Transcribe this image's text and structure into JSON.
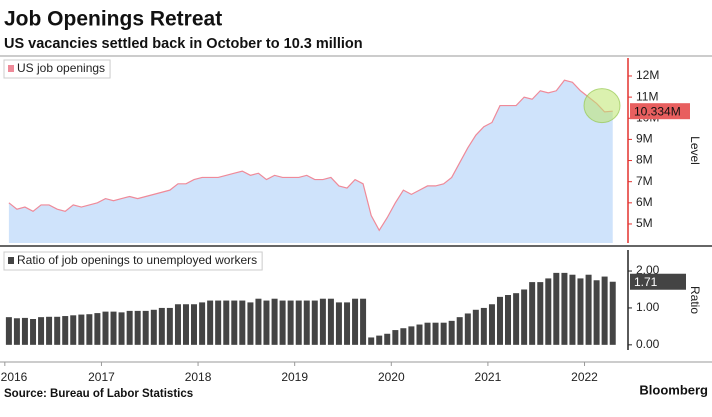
{
  "title": "Job Openings Retreat",
  "subtitle": "US vacancies settled back in October to 10.3 million",
  "source": "Source: Bureau of Labor Statistics",
  "brand": "Bloomberg",
  "chart_data": [
    {
      "type": "area",
      "axis_label": "Level",
      "x": [
        2016.542,
        2016.625,
        2016.708,
        2016.792,
        2016.875,
        2016.958,
        2017.042,
        2017.125,
        2017.208,
        2017.292,
        2017.375,
        2017.458,
        2017.542,
        2017.625,
        2017.708,
        2017.792,
        2017.875,
        2017.958,
        2018.042,
        2018.125,
        2018.208,
        2018.292,
        2018.375,
        2018.458,
        2018.542,
        2018.625,
        2018.708,
        2018.792,
        2018.875,
        2018.958,
        2019.042,
        2019.125,
        2019.208,
        2019.292,
        2019.375,
        2019.458,
        2019.542,
        2019.625,
        2019.708,
        2019.792,
        2019.875,
        2019.958,
        2020.042,
        2020.125,
        2020.208,
        2020.292,
        2020.375,
        2020.458,
        2020.542,
        2020.625,
        2020.708,
        2020.792,
        2020.875,
        2020.958,
        2021.042,
        2021.125,
        2021.208,
        2021.292,
        2021.375,
        2021.458,
        2021.542,
        2021.625,
        2021.708,
        2021.792,
        2021.875,
        2021.958,
        2022.042,
        2022.125,
        2022.208,
        2022.292,
        2022.375,
        2022.458,
        2022.542,
        2022.625,
        2022.708,
        2022.792
      ],
      "xlim": [
        2016.45,
        2022.95
      ],
      "xticks": [
        {
          "value": 2016.5,
          "label": "2016"
        },
        {
          "value": 2017.5,
          "label": "2017"
        },
        {
          "value": 2018.5,
          "label": "2018"
        },
        {
          "value": 2019.5,
          "label": "2019"
        },
        {
          "value": 2020.5,
          "label": "2020"
        },
        {
          "value": 2021.5,
          "label": "2021"
        },
        {
          "value": 2022.5,
          "label": "2022"
        }
      ],
      "series": [
        {
          "name": "US job openings",
          "color": "#ef8a99",
          "fill": "#cfe3fb",
          "values": [
            6.0,
            5.7,
            5.8,
            5.6,
            5.9,
            5.9,
            5.7,
            5.6,
            5.9,
            5.8,
            5.9,
            6.0,
            6.2,
            6.1,
            6.2,
            6.3,
            6.2,
            6.3,
            6.4,
            6.5,
            6.6,
            6.9,
            6.9,
            7.1,
            7.2,
            7.2,
            7.2,
            7.3,
            7.4,
            7.5,
            7.3,
            7.4,
            7.1,
            7.3,
            7.2,
            7.2,
            7.2,
            7.3,
            7.1,
            7.1,
            7.2,
            6.8,
            6.7,
            7.1,
            6.9,
            5.4,
            4.7,
            5.3,
            6.0,
            6.6,
            6.4,
            6.6,
            6.8,
            6.8,
            6.9,
            7.2,
            7.9,
            8.6,
            9.2,
            9.6,
            9.8,
            10.6,
            10.6,
            10.6,
            11.0,
            10.9,
            11.3,
            11.2,
            11.3,
            11.8,
            11.7,
            11.3,
            11.0,
            10.7,
            10.3,
            10.334
          ],
          "last_label": {
            "value": 10.334,
            "label": "10.334M"
          }
        }
      ],
      "ylim": [
        4.1,
        12.85
      ],
      "yticks": [
        {
          "value": 5,
          "label": "5M"
        },
        {
          "value": 6,
          "label": "6M"
        },
        {
          "value": 7,
          "label": "7M"
        },
        {
          "value": 8,
          "label": "8M"
        },
        {
          "value": 9,
          "label": "9M"
        },
        {
          "value": 10,
          "label": "10M"
        },
        {
          "value": 11,
          "label": "11M"
        },
        {
          "value": 12,
          "label": "12M"
        }
      ],
      "axis_color": "#e3322f"
    },
    {
      "type": "bar",
      "axis_label": "Ratio",
      "series": [
        {
          "name": "Ratio of job openings to unemployed workers",
          "color": "#444444",
          "values": [
            0.75,
            0.72,
            0.73,
            0.7,
            0.75,
            0.76,
            0.76,
            0.78,
            0.8,
            0.82,
            0.83,
            0.86,
            0.9,
            0.9,
            0.88,
            0.92,
            0.92,
            0.92,
            0.95,
            1.0,
            1.0,
            1.1,
            1.1,
            1.1,
            1.15,
            1.2,
            1.2,
            1.2,
            1.2,
            1.2,
            1.15,
            1.25,
            1.2,
            1.25,
            1.2,
            1.2,
            1.2,
            1.2,
            1.2,
            1.25,
            1.25,
            1.15,
            1.15,
            1.25,
            1.25,
            0.2,
            0.25,
            0.3,
            0.4,
            0.45,
            0.5,
            0.55,
            0.6,
            0.6,
            0.6,
            0.65,
            0.75,
            0.85,
            0.95,
            1.0,
            1.1,
            1.3,
            1.35,
            1.4,
            1.5,
            1.7,
            1.7,
            1.8,
            1.95,
            1.95,
            1.9,
            1.8,
            1.9,
            1.75,
            1.85,
            1.71
          ],
          "last_label": 1.71
        }
      ],
      "ylim": [
        -0.14,
        2.57
      ],
      "yticks": [
        {
          "value": 0,
          "label": "0.00"
        },
        {
          "value": 1,
          "label": "1.00"
        },
        {
          "value": 2,
          "label": "2.00"
        }
      ],
      "axis_color": "#222222"
    }
  ]
}
